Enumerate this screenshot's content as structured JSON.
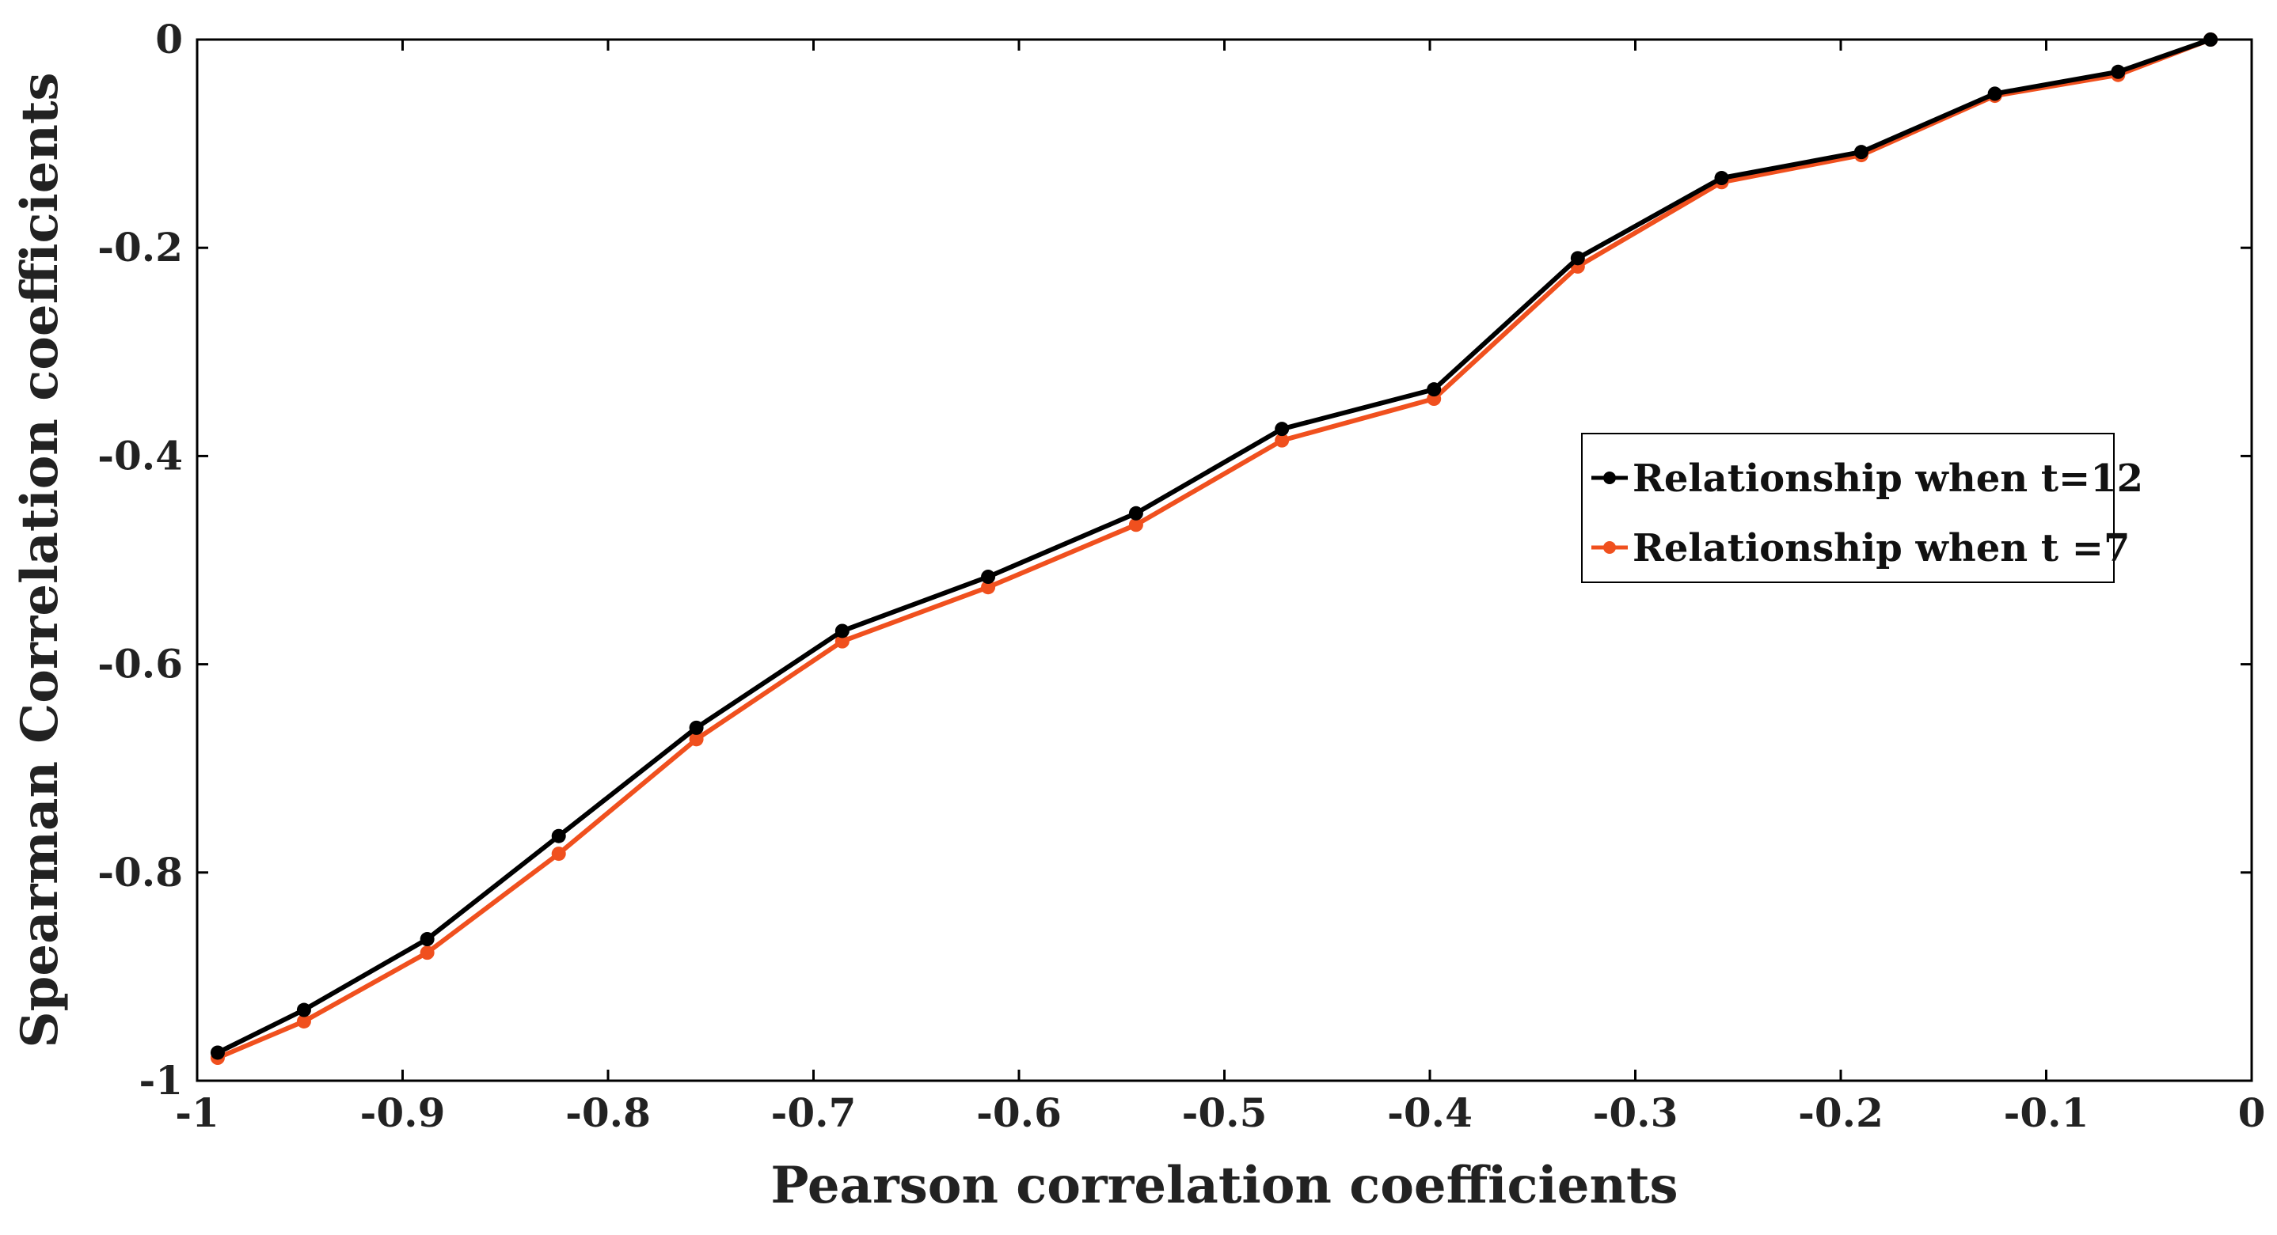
{
  "chart_data": {
    "type": "line",
    "title": "",
    "xlabel": "Pearson correlation coefficients",
    "ylabel": "Spearman Correlation coefficients",
    "xlim": [
      -1,
      0
    ],
    "ylim": [
      -1,
      0
    ],
    "xticks": [
      -1,
      -0.9,
      -0.8,
      -0.7,
      -0.6,
      -0.5,
      -0.4,
      -0.3,
      -0.2,
      -0.1,
      0
    ],
    "xtick_labels": [
      "-1",
      "-0.9",
      "-0.8",
      "-0.7",
      "-0.6",
      "-0.5",
      "-0.4",
      "-0.3",
      "-0.2",
      "-0.1",
      "0"
    ],
    "yticks": [
      0,
      -0.2,
      -0.4,
      -0.6,
      -0.8,
      -1
    ],
    "ytick_labels": [
      "0",
      "-0.2",
      "-0.4",
      "-0.6",
      "-0.8",
      "-1"
    ],
    "grid": false,
    "legend_position": "right",
    "series": [
      {
        "name": "Relationship when t=12",
        "color": "#000000",
        "x": [
          -0.99,
          -0.948,
          -0.888,
          -0.824,
          -0.757,
          -0.686,
          -0.615,
          -0.543,
          -0.472,
          -0.398,
          -0.328,
          -0.258,
          -0.19,
          -0.125,
          -0.065,
          -0.02
        ],
        "y": [
          -0.973,
          -0.932,
          -0.864,
          -0.765,
          -0.661,
          -0.568,
          -0.516,
          -0.455,
          -0.374,
          -0.336,
          -0.21,
          -0.133,
          -0.108,
          -0.052,
          -0.031,
          0
        ]
      },
      {
        "name": "Relationship when t =7",
        "color": "#f0501e",
        "x": [
          -0.99,
          -0.948,
          -0.888,
          -0.824,
          -0.757,
          -0.686,
          -0.615,
          -0.543,
          -0.472,
          -0.398,
          -0.328,
          -0.258,
          -0.19,
          -0.125,
          -0.065,
          -0.02
        ],
        "y": [
          -0.978,
          -0.943,
          -0.877,
          -0.782,
          -0.672,
          -0.578,
          -0.526,
          -0.466,
          -0.385,
          -0.345,
          -0.218,
          -0.137,
          -0.111,
          -0.054,
          -0.034,
          0
        ]
      }
    ]
  }
}
